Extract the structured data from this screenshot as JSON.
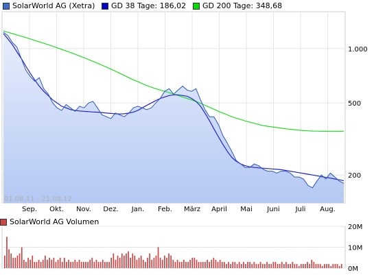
{
  "legend": [
    {
      "label": "SolarWorld AG (Xetra)",
      "color": "#3a6ec8"
    },
    {
      "label": "GD 38 Tage: 186,02",
      "color": "#0000cc"
    },
    {
      "label": "GD 200 Tage: 348,68",
      "color": "#00dd00"
    }
  ],
  "date_range": "01.08.11 - 21.08.12",
  "volume_legend": {
    "label": "SolarWorld AG Volumen",
    "color": "#cc4444"
  },
  "chart_data": [
    {
      "type": "line",
      "title": "",
      "scale": "log",
      "x_labels": [
        "Sep.",
        "Okt.",
        "Nov.",
        "Dez.",
        "Jan.",
        "Feb.",
        "März",
        "April",
        "Mai",
        "Juni",
        "Juli",
        "Aug."
      ],
      "y_ticks": [
        {
          "value": 200,
          "label": "200"
        },
        {
          "value": 500,
          "label": "500"
        },
        {
          "value": 1000,
          "label": "1.000"
        }
      ],
      "grid": true,
      "series": [
        {
          "name": "SolarWorld AG (Xetra)",
          "color": "#2a57b8",
          "fill": true,
          "values": [
            1230,
            1180,
            1080,
            1020,
            880,
            760,
            700,
            660,
            690,
            600,
            560,
            500,
            470,
            455,
            490,
            470,
            450,
            480,
            470,
            500,
            510,
            470,
            430,
            420,
            410,
            440,
            430,
            420,
            440,
            470,
            480,
            470,
            460,
            470,
            500,
            530,
            580,
            600,
            560,
            590,
            620,
            590,
            580,
            600,
            520,
            460,
            420,
            420,
            380,
            330,
            300,
            270,
            240,
            230,
            220,
            220,
            230,
            225,
            215,
            210,
            210,
            205,
            210,
            210,
            205,
            195,
            195,
            190,
            175,
            170,
            185,
            200,
            190,
            205,
            195,
            185,
            180
          ]
        },
        {
          "name": "GD 38 Tage: 186,02",
          "color": "#2222cc",
          "values": [
            1210,
            1130,
            1050,
            960,
            880,
            800,
            730,
            670,
            620,
            580,
            550,
            520,
            500,
            480,
            470,
            460,
            455,
            452,
            450,
            448,
            446,
            445,
            443,
            440,
            438,
            436,
            435,
            436,
            440,
            445,
            455,
            470,
            485,
            500,
            515,
            530,
            540,
            550,
            555,
            555,
            550,
            545,
            530,
            510,
            480,
            440,
            400,
            360,
            325,
            295,
            270,
            250,
            238,
            230,
            225,
            222,
            220,
            219,
            218,
            217,
            216,
            215,
            214,
            212,
            210,
            208,
            206,
            204,
            202,
            200,
            198,
            196,
            194,
            192,
            190,
            188,
            186
          ]
        },
        {
          "name": "GD 200 Tage: 348,68",
          "color": "#22dd22",
          "values": [
            1250,
            1230,
            1210,
            1190,
            1170,
            1150,
            1130,
            1110,
            1090,
            1070,
            1050,
            1030,
            1010,
            990,
            970,
            950,
            930,
            910,
            890,
            870,
            850,
            830,
            810,
            790,
            770,
            750,
            730,
            710,
            690,
            672,
            656,
            640,
            625,
            612,
            600,
            590,
            580,
            570,
            560,
            550,
            540,
            530,
            520,
            510,
            498,
            486,
            474,
            462,
            450,
            440,
            430,
            420,
            412,
            405,
            398,
            392,
            386,
            380,
            375,
            372,
            369,
            366,
            363,
            360,
            358,
            356,
            354,
            352,
            351,
            350,
            349.5,
            349,
            348.9,
            348.8,
            348.7,
            348.7,
            348.68
          ]
        }
      ]
    },
    {
      "type": "bar",
      "title": "",
      "name": "SolarWorld AG Volumen",
      "y_ticks": [
        {
          "value": 0,
          "label": "0M"
        },
        {
          "value": 10,
          "label": "10M"
        },
        {
          "value": 20,
          "label": "20M"
        }
      ],
      "ylim": [
        0,
        20
      ],
      "color": "#cc4444",
      "values": [
        6,
        15,
        9,
        7,
        5,
        5,
        6,
        7,
        10,
        4,
        3,
        5,
        4,
        6,
        3,
        3,
        4,
        3,
        4,
        6,
        4,
        5,
        4,
        5,
        3,
        4,
        5,
        3,
        5,
        3,
        4,
        3,
        3,
        4,
        3,
        4,
        3,
        3,
        3,
        3,
        4,
        5,
        3,
        4,
        3,
        3,
        4,
        3,
        3,
        3,
        5,
        7,
        4,
        6,
        5,
        7,
        6,
        7,
        8,
        5,
        7,
        6,
        4,
        5,
        6,
        4,
        3,
        5,
        7,
        4,
        5,
        6,
        10,
        5,
        4,
        6,
        5,
        7,
        6,
        4,
        3,
        4,
        3,
        3,
        4,
        3,
        3,
        4,
        5,
        5,
        4,
        3,
        3,
        3,
        3,
        4,
        3,
        4,
        5,
        4,
        3,
        4,
        3,
        3,
        2,
        3,
        2,
        3,
        3,
        2,
        3,
        2,
        3,
        2,
        3,
        3,
        2,
        3,
        2,
        2,
        3,
        2,
        2,
        3,
        2,
        2,
        3,
        3,
        2,
        2,
        3,
        2,
        3,
        2,
        2,
        3,
        2,
        2,
        1,
        2,
        2,
        2,
        3,
        2,
        4,
        3,
        2,
        2,
        2,
        1,
        2,
        2,
        2,
        1,
        2,
        2,
        2,
        1,
        2
      ]
    }
  ]
}
